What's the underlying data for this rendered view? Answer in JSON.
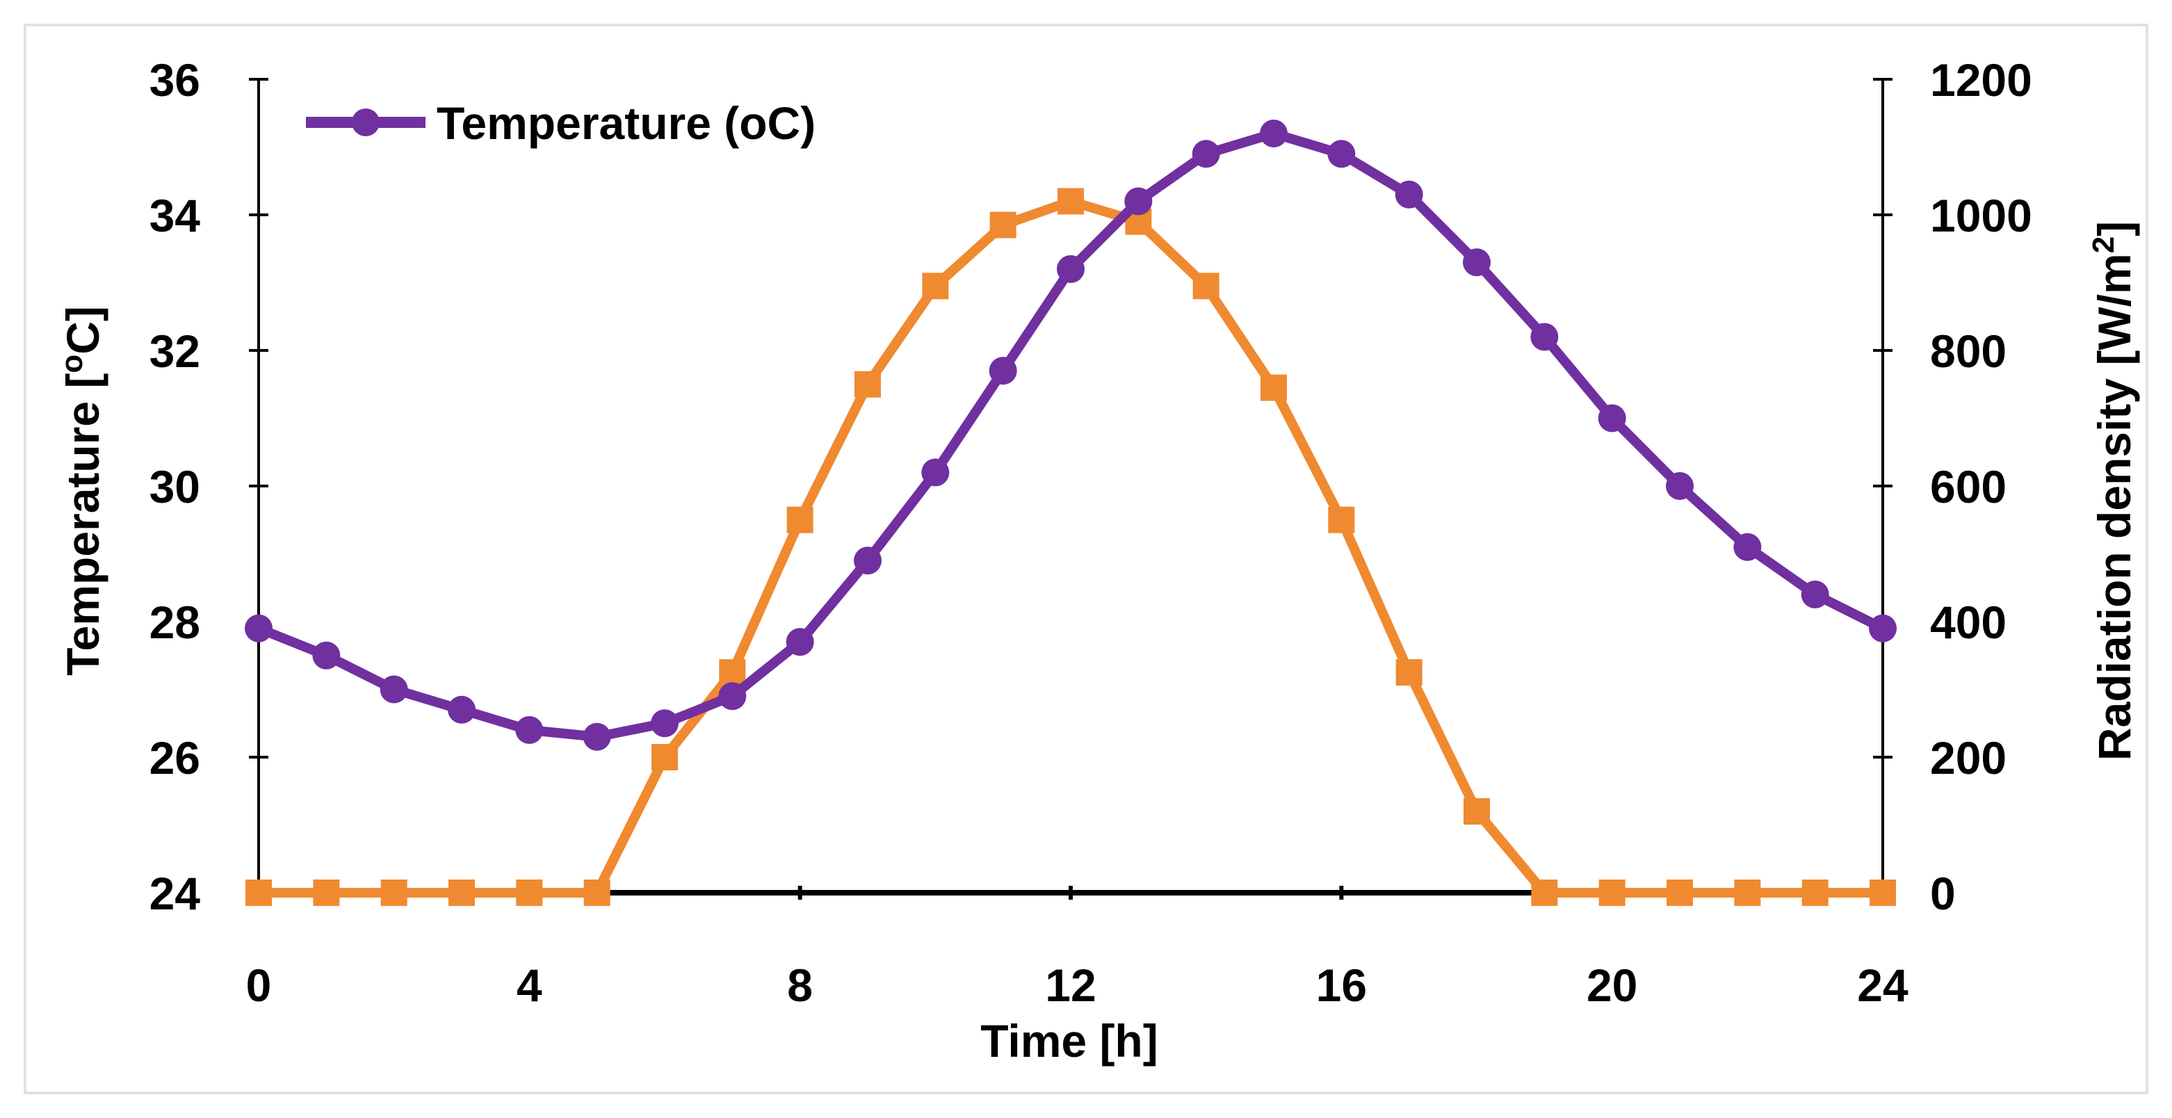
{
  "chart_data": {
    "type": "line",
    "title": "",
    "xlabel": "Time [h]",
    "ylabel_left": "Temperature [oC]",
    "ylabel_right": "Radiation density [W/m2]",
    "xlim": [
      0,
      24
    ],
    "ylim_left": [
      24,
      36
    ],
    "ylim_right": [
      0,
      1200
    ],
    "x_ticks": [
      0,
      4,
      8,
      12,
      16,
      20,
      24
    ],
    "y_left_ticks": [
      24,
      26,
      28,
      30,
      32,
      34,
      36
    ],
    "y_right_ticks": [
      0,
      200,
      400,
      600,
      800,
      1000,
      1200
    ],
    "grid": false,
    "legend_position": "top-left",
    "x": [
      0,
      1,
      2,
      3,
      4,
      5,
      6,
      7,
      8,
      9,
      10,
      11,
      12,
      13,
      14,
      15,
      16,
      17,
      18,
      19,
      20,
      21,
      22,
      23,
      24
    ],
    "series": [
      {
        "name": "Temperature (oC)",
        "axis": "left",
        "color": "#7030A0",
        "marker": "circle",
        "values": [
          27.9,
          27.5,
          27.0,
          26.7,
          26.4,
          26.3,
          26.5,
          26.9,
          27.7,
          28.9,
          30.2,
          31.7,
          33.2,
          34.2,
          34.9,
          35.2,
          34.9,
          34.3,
          33.3,
          32.2,
          31.0,
          30.0,
          29.1,
          28.4,
          27.9
        ]
      },
      {
        "name": "Radiation density",
        "axis": "right",
        "color": "#F08A30",
        "marker": "square",
        "values": [
          0,
          0,
          0,
          0,
          0,
          0,
          200,
          325,
          550,
          750,
          895,
          985,
          1020,
          990,
          895,
          745,
          550,
          325,
          120,
          0,
          0,
          0,
          0,
          0,
          0
        ]
      }
    ]
  }
}
